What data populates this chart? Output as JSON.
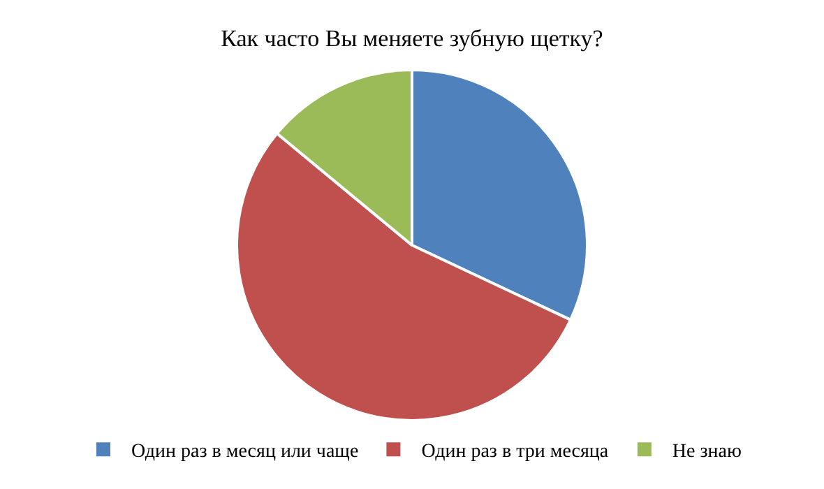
{
  "chart_data": {
    "type": "pie",
    "title": "Как часто Вы меняете зубную щетку?",
    "categories": [
      "Один раз в месяц или чаще",
      "Один раз в три месяца",
      "Не знаю"
    ],
    "values": [
      32,
      54,
      14
    ],
    "colors": [
      "#4f81bd",
      "#c0504d",
      "#9bbb59"
    ],
    "legend": "bottom"
  }
}
